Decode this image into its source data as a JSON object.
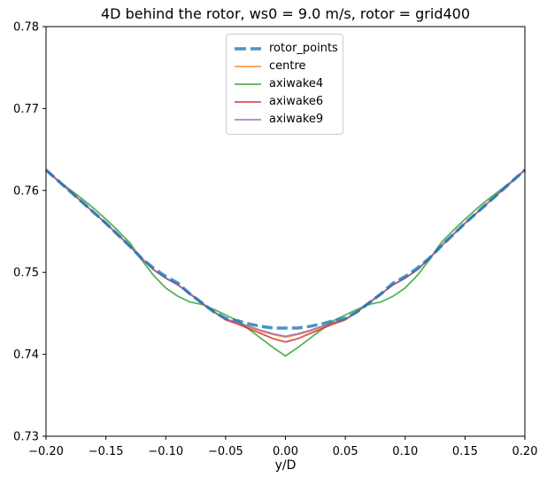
{
  "figure": {
    "title": "4D behind the rotor, ws0 = 9.0 m/s, rotor = grid400",
    "xlabel": "y/D"
  },
  "chart_data": {
    "type": "line",
    "title": "4D behind the rotor, ws0 = 9.0 m/s, rotor = grid400",
    "xlabel": "y/D",
    "ylabel": "",
    "xlim": [
      -0.2,
      0.2
    ],
    "ylim": [
      0.73,
      0.78
    ],
    "grid": false,
    "legend_position": "upper center",
    "background": "#ffffff",
    "spine_color": "#000000",
    "xticks": [
      {
        "value": -0.2,
        "label": "−0.20"
      },
      {
        "value": -0.15,
        "label": "−0.15"
      },
      {
        "value": -0.1,
        "label": "−0.10"
      },
      {
        "value": -0.05,
        "label": "−0.05"
      },
      {
        "value": 0.0,
        "label": "0.00"
      },
      {
        "value": 0.05,
        "label": "0.05"
      },
      {
        "value": 0.1,
        "label": "0.10"
      },
      {
        "value": 0.15,
        "label": "0.15"
      },
      {
        "value": 0.2,
        "label": "0.20"
      }
    ],
    "yticks": [
      {
        "value": 0.78,
        "label": "0.78"
      },
      {
        "value": 0.77,
        "label": "0.77"
      },
      {
        "value": 0.76,
        "label": "0.76"
      },
      {
        "value": 0.75,
        "label": "0.75"
      },
      {
        "value": 0.74,
        "label": "0.74"
      },
      {
        "value": 0.73,
        "label": "0.73"
      }
    ],
    "x": [
      -0.2,
      -0.19,
      -0.18,
      -0.17,
      -0.16,
      -0.15,
      -0.14,
      -0.13,
      -0.12,
      -0.11,
      -0.1,
      -0.09,
      -0.08,
      -0.07,
      -0.06,
      -0.05,
      -0.04,
      -0.03,
      -0.02,
      -0.01,
      0.0,
      0.01,
      0.02,
      0.03,
      0.04,
      0.05,
      0.06,
      0.07,
      0.08,
      0.09,
      0.1,
      0.11,
      0.12,
      0.13,
      0.14,
      0.15,
      0.16,
      0.17,
      0.18,
      0.19,
      0.2
    ],
    "series": [
      {
        "name": "rotor_points",
        "color": "#1f77b4",
        "linestyle": "dashed",
        "linewidth": 3.5,
        "opacity": 0.8,
        "zorder": 5,
        "values": [
          0.7625,
          0.7612,
          0.7599,
          0.7586,
          0.7573,
          0.756,
          0.7546,
          0.7532,
          0.7517,
          0.7505,
          0.7495,
          0.7487,
          0.7474,
          0.7463,
          0.7452,
          0.7444,
          0.7441,
          0.7437,
          0.7434,
          0.7432,
          0.7432,
          0.7432,
          0.7434,
          0.7437,
          0.7441,
          0.7444,
          0.7452,
          0.7463,
          0.7474,
          0.7487,
          0.7495,
          0.7505,
          0.7517,
          0.7532,
          0.7546,
          0.756,
          0.7573,
          0.7586,
          0.7599,
          0.7612,
          0.7625
        ]
      },
      {
        "name": "centre",
        "color": "#ff7f0e",
        "linestyle": "solid",
        "linewidth": 1.8,
        "opacity": 0.8,
        "zorder": 1,
        "values": [
          0.7625,
          0.7612,
          0.7599,
          0.7586,
          0.7573,
          0.756,
          0.7546,
          0.7532,
          0.7517,
          0.7503,
          0.7493,
          0.7485,
          0.7474,
          0.7463,
          0.7452,
          0.7443,
          0.7438,
          0.7433,
          0.7428,
          0.7424,
          0.7421,
          0.7424,
          0.7428,
          0.7433,
          0.7438,
          0.7443,
          0.7452,
          0.7463,
          0.7474,
          0.7485,
          0.7493,
          0.7503,
          0.7517,
          0.7532,
          0.7546,
          0.756,
          0.7573,
          0.7586,
          0.7599,
          0.7612,
          0.7625
        ]
      },
      {
        "name": "axiwake4",
        "color": "#2ca02c",
        "linestyle": "solid",
        "linewidth": 1.8,
        "opacity": 0.8,
        "zorder": 2,
        "values": [
          0.7625,
          0.7612,
          0.7601,
          0.759,
          0.7578,
          0.7565,
          0.7551,
          0.7536,
          0.7515,
          0.7496,
          0.7481,
          0.7471,
          0.7464,
          0.7461,
          0.7455,
          0.7448,
          0.7441,
          0.743,
          0.7419,
          0.7408,
          0.7398,
          0.7408,
          0.7419,
          0.743,
          0.7441,
          0.7448,
          0.7455,
          0.7461,
          0.7464,
          0.7471,
          0.7481,
          0.7496,
          0.7515,
          0.7536,
          0.7551,
          0.7565,
          0.7578,
          0.759,
          0.7601,
          0.7612,
          0.7625
        ]
      },
      {
        "name": "axiwake6",
        "color": "#d62728",
        "linestyle": "solid",
        "linewidth": 1.8,
        "opacity": 0.8,
        "zorder": 3,
        "values": [
          0.7625,
          0.7612,
          0.7599,
          0.7586,
          0.7573,
          0.756,
          0.7546,
          0.7532,
          0.7517,
          0.7503,
          0.7493,
          0.7485,
          0.7474,
          0.7463,
          0.7452,
          0.7442,
          0.7437,
          0.7431,
          0.7425,
          0.7419,
          0.7415,
          0.7419,
          0.7425,
          0.7431,
          0.7437,
          0.7442,
          0.7452,
          0.7463,
          0.7474,
          0.7485,
          0.7493,
          0.7503,
          0.7517,
          0.7532,
          0.7546,
          0.756,
          0.7573,
          0.7586,
          0.7599,
          0.7612,
          0.7625
        ]
      },
      {
        "name": "axiwake9",
        "color": "#9467bd",
        "linestyle": "solid",
        "linewidth": 1.8,
        "opacity": 0.8,
        "zorder": 4,
        "values": [
          0.7625,
          0.7612,
          0.7599,
          0.7586,
          0.7573,
          0.756,
          0.7546,
          0.7532,
          0.7517,
          0.7503,
          0.7493,
          0.7485,
          0.7474,
          0.7463,
          0.7452,
          0.7443,
          0.7439,
          0.7434,
          0.7429,
          0.7425,
          0.7422,
          0.7425,
          0.7429,
          0.7434,
          0.7439,
          0.7443,
          0.7452,
          0.7463,
          0.7474,
          0.7485,
          0.7493,
          0.7503,
          0.7517,
          0.7532,
          0.7546,
          0.756,
          0.7573,
          0.7586,
          0.7599,
          0.7612,
          0.7625
        ]
      }
    ]
  }
}
